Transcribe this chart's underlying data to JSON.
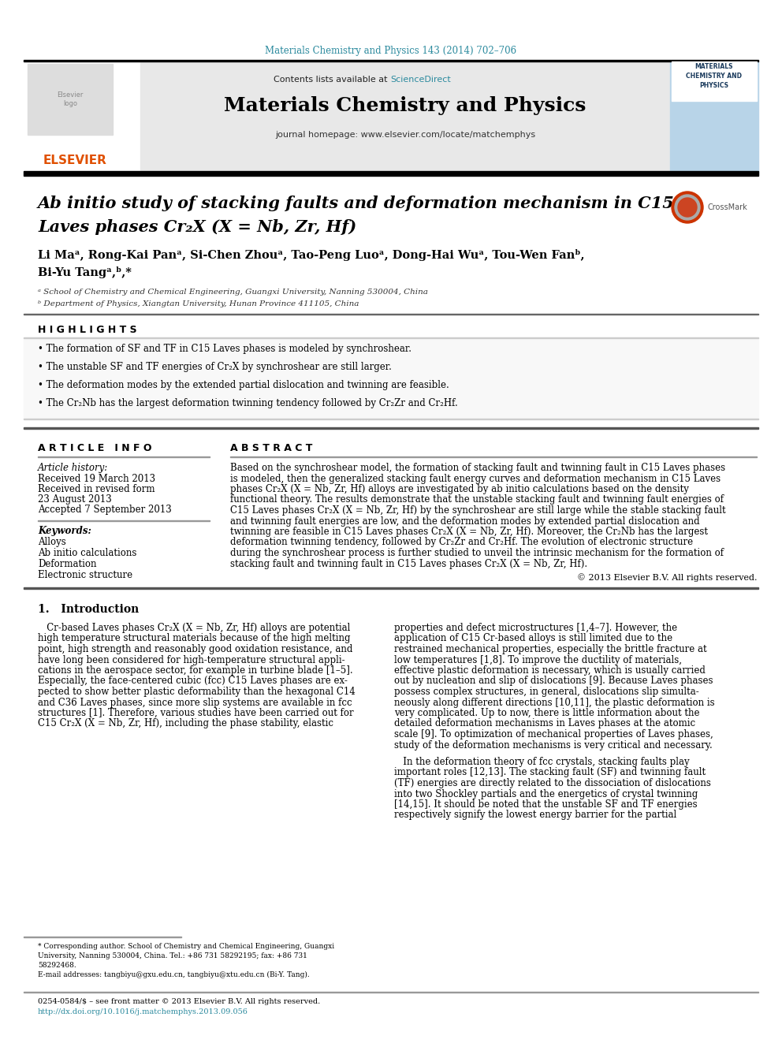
{
  "journal_ref": "Materials Chemistry and Physics 143 (2014) 702–706",
  "journal_name": "Materials Chemistry and Physics",
  "journal_url": "www.elsevier.com/locate/matchemphys",
  "paper_title_line1": "Ab initio study of stacking faults and deformation mechanism in C15",
  "paper_title_line2": "Laves phases Cr₂X (X = Nb, Zr, Hf)",
  "authors": "Li Maᵃ, Rong-Kai Panᵃ, Si-Chen Zhouᵃ, Tao-Peng Luoᵃ, Dong-Hai Wuᵃ, Tou-Wen Fanᵇ,",
  "authors2": "Bi-Yu Tangᵃ,ᵇ,*",
  "affil_a": "ᵃ School of Chemistry and Chemical Engineering, Guangxi University, Nanning 530004, China",
  "affil_b": "ᵇ Department of Physics, Xiangtan University, Hunan Province 411105, China",
  "highlights_title": "H I G H L I G H T S",
  "highlight1": "• The formation of SF and TF in C15 Laves phases is modeled by synchroshear.",
  "highlight2": "• The unstable SF and TF energies of Cr₂X by synchroshear are still larger.",
  "highlight3": "• The deformation modes by the extended partial dislocation and twinning are feasible.",
  "highlight4": "• The Cr₂Nb has the largest deformation twinning tendency followed by Cr₂Zr and Cr₂Hf.",
  "article_info_title": "A R T I C L E   I N F O",
  "abstract_title": "A B S T R A C T",
  "article_history": "Article history:",
  "received": "Received 19 March 2013",
  "revised": "Received in revised form",
  "revised2": "23 August 2013",
  "accepted": "Accepted 7 September 2013",
  "keywords_title": "Keywords:",
  "kw1": "Alloys",
  "kw2": "Ab initio calculations",
  "kw3": "Deformation",
  "kw4": "Electronic structure",
  "copyright": "© 2013 Elsevier B.V. All rights reserved.",
  "intro_title": "1.   Introduction",
  "footnote1": "* Corresponding author. School of Chemistry and Chemical Engineering, Guangxi",
  "footnote2": "University, Nanning 530004, China. Tel.: +86 731 58292195; fax: +86 731",
  "footnote3": "58292468.",
  "footnote_email": "E-mail addresses: tangbiyu@gxu.edu.cn, tangbiyu@xtu.edu.cn (Bi-Y. Tang).",
  "bottom_line1": "0254-0584/$ – see front matter © 2013 Elsevier B.V. All rights reserved.",
  "bottom_line2": "http://dx.doi.org/10.1016/j.matchemphys.2013.09.056",
  "header_bg": "#e8e8e8",
  "teal_color": "#2b8a9e",
  "elsevier_orange": "#e05000",
  "cover_blue": "#b8d4e8",
  "cover_dark": "#1a3a5c"
}
